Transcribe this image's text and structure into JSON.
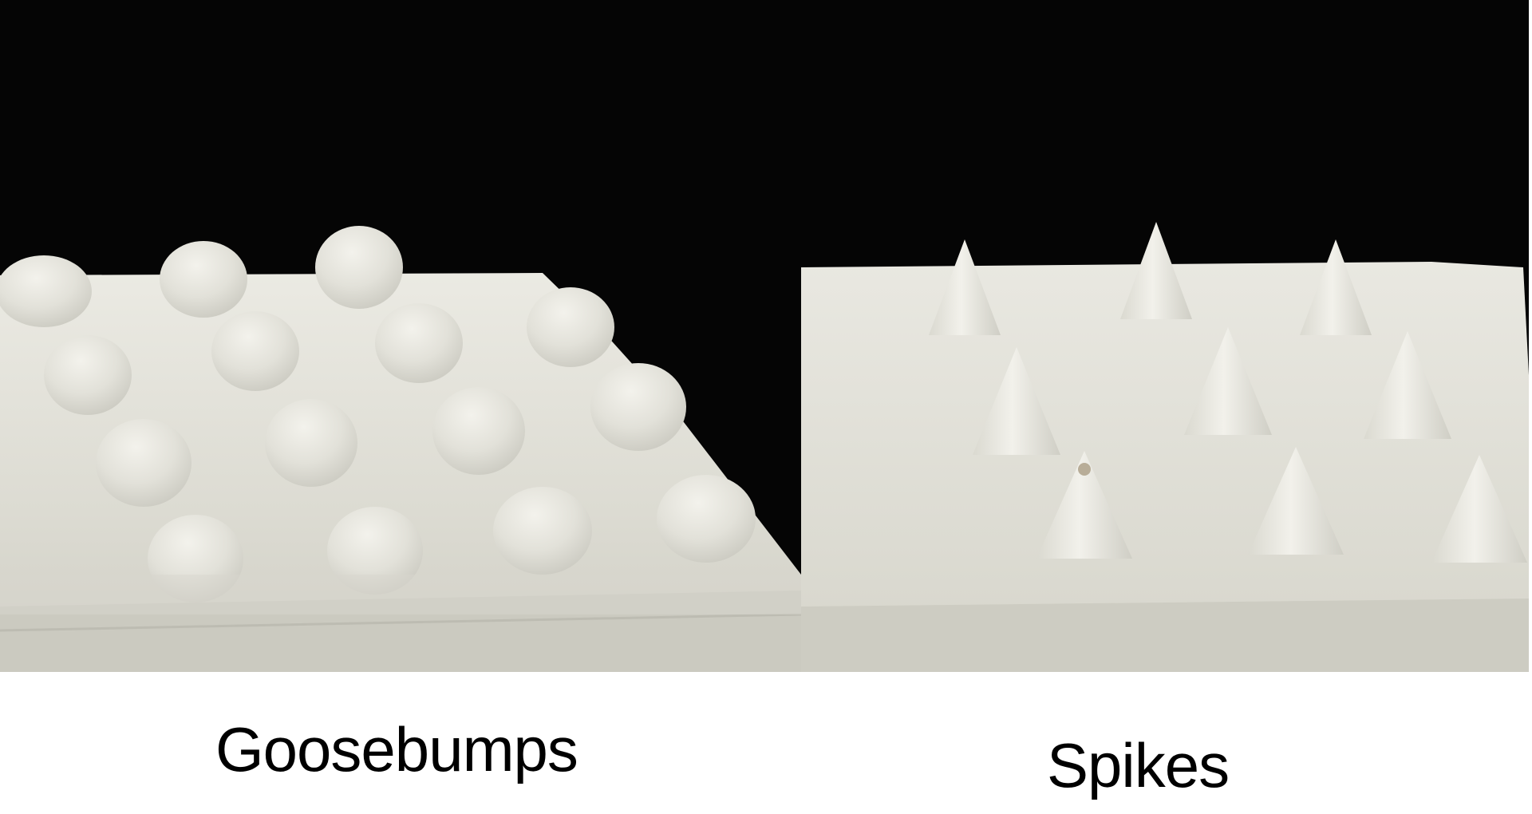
{
  "panels": [
    {
      "label": "Goosebumps"
    },
    {
      "label": "Spikes"
    }
  ]
}
